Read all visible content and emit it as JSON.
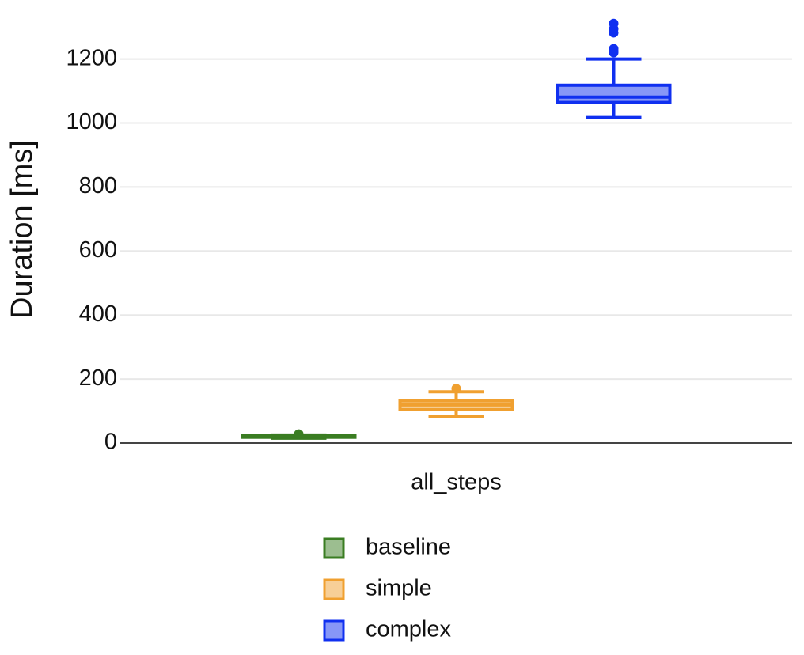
{
  "chart_data": {
    "type": "box",
    "y_label": "Duration [ms]",
    "categories": [
      "all_steps"
    ],
    "series": [
      {
        "name": "baseline",
        "color": "#3a7d22",
        "min": 15,
        "q1": 18,
        "median": 20,
        "q3": 23,
        "max": 25,
        "outliers": [
          28
        ]
      },
      {
        "name": "simple",
        "color": "#f0a030",
        "min": 84,
        "q1": 104,
        "median": 119,
        "q3": 132,
        "max": 160,
        "outliers": [
          170
        ]
      },
      {
        "name": "complex",
        "color": "#1030f0",
        "min": 1017,
        "q1": 1064,
        "median": 1081,
        "q3": 1118,
        "max": 1200,
        "outliers": [
          1220,
          1225,
          1232,
          1282,
          1294,
          1311
        ]
      }
    ],
    "ylim": [
      0,
      1335
    ],
    "yticks": [
      0,
      200,
      400,
      600,
      800,
      1000,
      1200
    ],
    "grid": true,
    "legend": "bottom"
  }
}
